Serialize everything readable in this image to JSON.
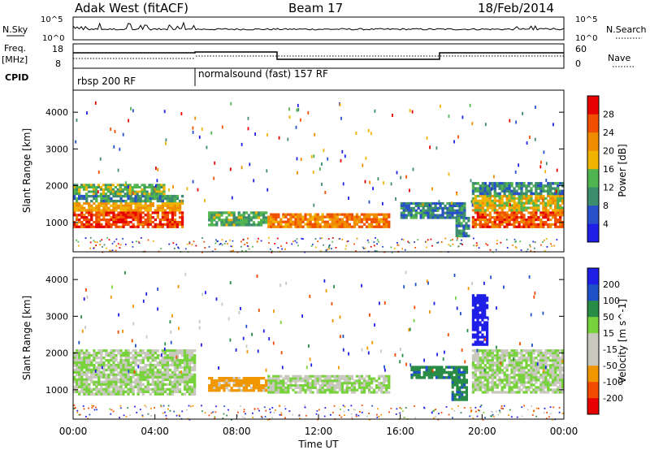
{
  "header": {
    "station": "Adak West (fitACF)",
    "beam": "Beam 17",
    "date": "18/Feb/2014"
  },
  "side_labels": {
    "nsky": "N.Sky",
    "nsearch": "N.Search",
    "freq": "Freq.",
    "freq_unit": "[MHz]",
    "nave": "Nave",
    "cpid": "CPID"
  },
  "cpid_labels": [
    "rbsp 200 RF",
    "normalsound (fast) 157 RF"
  ],
  "noise_ticks": {
    "top": "10^5",
    "bottom": "10^0",
    "right_top": "10^5",
    "right_bottom": "10^0"
  },
  "freq_ticks": {
    "left": [
      "18",
      "8"
    ],
    "right": [
      "60",
      "0"
    ]
  },
  "colors": {
    "power": [
      "#1e1ee6",
      "#2850c8",
      "#3c8c6e",
      "#50b450",
      "#f0b400",
      "#f08c00",
      "#f05000",
      "#e60000"
    ],
    "velocity": [
      "#e60000",
      "#f04b00",
      "#f09600",
      "#c8c8be",
      "#c8c8be",
      "#78d23c",
      "#288c46",
      "#1e50c8",
      "#1e1ee6"
    ]
  },
  "chart_data": [
    {
      "type": "heatmap",
      "name": "power",
      "xlabel": "",
      "ylabel": "Slant Range [km]",
      "y_ticks": [
        "1000",
        "2000",
        "3000",
        "4000"
      ],
      "ylim": [
        200,
        4600
      ],
      "xlim_hours": [
        0,
        24
      ],
      "colorbar_label": "Power [dB]",
      "colorbar_ticks": [
        "4",
        "8",
        "12",
        "16",
        "20",
        "24",
        "28"
      ],
      "clim": [
        0,
        32
      ],
      "bands": [
        {
          "t0": 0,
          "t1": 5.4,
          "r0": 850,
          "r1": 1300,
          "level": 27
        },
        {
          "t0": 0,
          "t1": 5.4,
          "r0": 1300,
          "r1": 1550,
          "level": 20
        },
        {
          "t0": 0,
          "t1": 5.4,
          "r0": 1550,
          "r1": 1750,
          "level": 10
        },
        {
          "t0": 0,
          "t1": 4.5,
          "r0": 1750,
          "r1": 2050,
          "level": 14
        },
        {
          "t0": 6.6,
          "t1": 9.5,
          "r0": 900,
          "r1": 1300,
          "level": 13
        },
        {
          "t0": 9.5,
          "t1": 15.5,
          "r0": 850,
          "r1": 1250,
          "level": 23
        },
        {
          "t0": 16,
          "t1": 19.2,
          "r0": 1100,
          "r1": 1550,
          "level": 9
        },
        {
          "t0": 18.7,
          "t1": 19.4,
          "r0": 600,
          "r1": 1150,
          "level": 11
        },
        {
          "t0": 19.5,
          "t1": 24,
          "r0": 850,
          "r1": 1300,
          "level": 26
        },
        {
          "t0": 19.5,
          "t1": 24,
          "r0": 1300,
          "r1": 1750,
          "level": 18
        },
        {
          "t0": 19.5,
          "t1": 24,
          "r0": 1750,
          "r1": 2100,
          "level": 10
        }
      ]
    },
    {
      "type": "heatmap",
      "name": "velocity",
      "xlabel": "Time UT",
      "ylabel": "Slant Range [km]",
      "x_ticks": [
        "00:00",
        "04:00",
        "08:00",
        "12:00",
        "16:00",
        "20:00",
        "00:00"
      ],
      "y_ticks": [
        "1000",
        "2000",
        "3000",
        "4000"
      ],
      "ylim": [
        200,
        4600
      ],
      "xlim_hours": [
        0,
        24
      ],
      "colorbar_label": "Velocity [m s^-1]",
      "colorbar_ticks": [
        "-200",
        "-100",
        "-50",
        "-15",
        "15",
        "50",
        "100",
        "200"
      ],
      "bands": [
        {
          "t0": 0,
          "t1": 6.0,
          "r0": 850,
          "r1": 2100,
          "velocity": 0
        },
        {
          "t0": 6.6,
          "t1": 9.5,
          "r0": 950,
          "r1": 1350,
          "velocity": -60
        },
        {
          "t0": 9.5,
          "t1": 15.5,
          "r0": 900,
          "r1": 1400,
          "velocity": 0
        },
        {
          "t0": 16.5,
          "t1": 19.3,
          "r0": 1300,
          "r1": 1650,
          "velocity": 40
        },
        {
          "t0": 18.5,
          "t1": 19.3,
          "r0": 700,
          "r1": 1300,
          "velocity": 40
        },
        {
          "t0": 19.5,
          "t1": 24,
          "r0": 900,
          "r1": 2100,
          "velocity": 0
        },
        {
          "t0": 19.5,
          "t1": 20.3,
          "r0": 2200,
          "r1": 3600,
          "velocity": 150
        }
      ]
    }
  ]
}
